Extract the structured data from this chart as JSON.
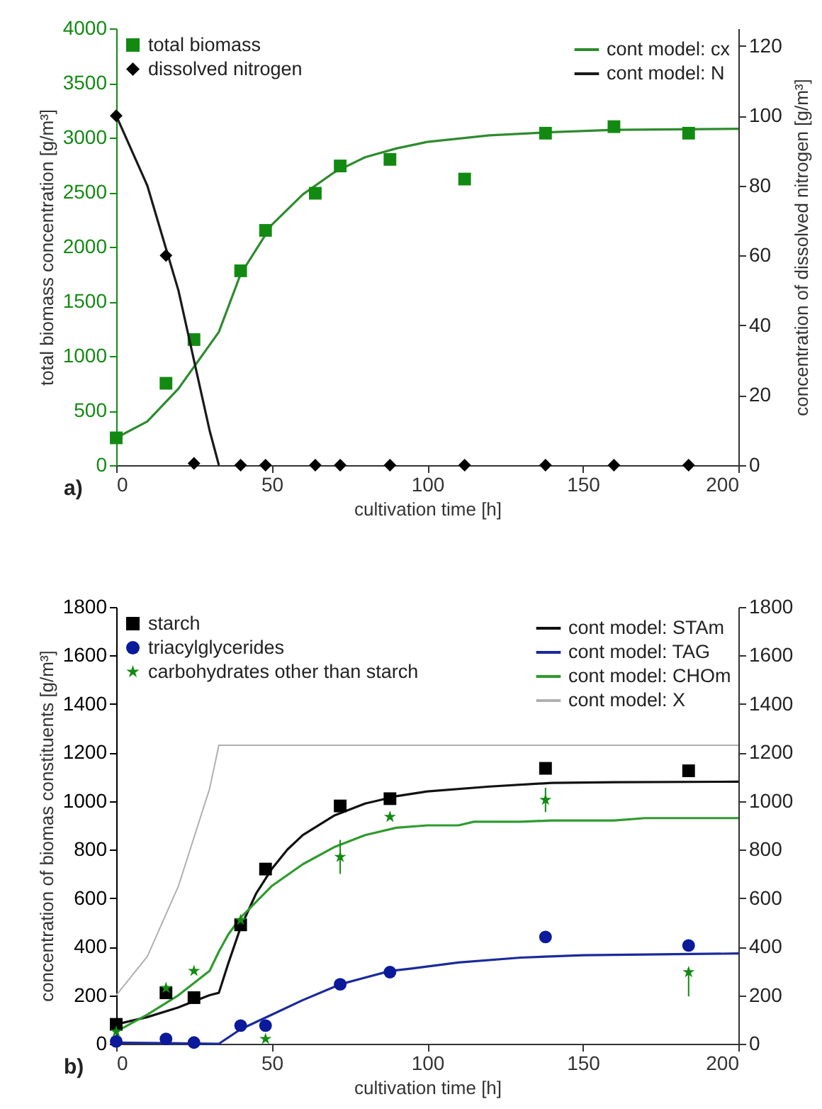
{
  "chart_data": [
    {
      "type": "scatter",
      "xlabel": "cultivation time [h]",
      "ylabel": "total biomass concentration [g/m³]",
      "y2label": "concentration of dissolved nitrogen [g/m³]",
      "xlim": [
        0,
        200
      ],
      "xticks": [
        0,
        50,
        100,
        150,
        200
      ],
      "ylim": [
        0,
        4000
      ],
      "yticks": [
        0,
        500,
        1000,
        1500,
        2000,
        2500,
        3000,
        3500,
        4000
      ],
      "y2lim": [
        0,
        125
      ],
      "y2ticks": [
        0,
        20,
        40,
        60,
        80,
        100,
        120
      ],
      "legend": "top",
      "annotations": [
        "a)"
      ],
      "series": [
        {
          "name": "total biomass",
          "marker": "square",
          "color": "#128a12",
          "x": [
            0,
            16,
            25,
            40,
            48,
            64,
            72,
            88,
            112,
            138,
            160,
            184
          ],
          "values": [
            250,
            750,
            1150,
            1780,
            2150,
            2490,
            2740,
            2800,
            2620,
            3040,
            3100,
            3040
          ]
        },
        {
          "name": "cont model: cx",
          "type": "line",
          "color": "#2e8b2e",
          "x": [
            0,
            10,
            20,
            30,
            33,
            40,
            50,
            60,
            70,
            80,
            90,
            100,
            120,
            140,
            160,
            200
          ],
          "values": [
            250,
            400,
            700,
            1100,
            1220,
            1750,
            2200,
            2480,
            2680,
            2820,
            2900,
            2960,
            3020,
            3050,
            3070,
            3080
          ]
        },
        {
          "name": "dissolved nitrogen",
          "marker": "diamond",
          "axis": "y2",
          "color": "#000000",
          "x": [
            0,
            16,
            25,
            40,
            48,
            64,
            72,
            88,
            112,
            138,
            160,
            184
          ],
          "values": [
            100,
            60,
            0.5,
            0,
            0,
            0,
            0,
            0,
            0,
            0,
            0,
            0
          ]
        },
        {
          "name": "cont model: N",
          "type": "line",
          "axis": "y2",
          "color": "#1a1a1a",
          "x": [
            0,
            10,
            16,
            20,
            25,
            30,
            33
          ],
          "values": [
            100,
            80,
            62,
            50,
            30,
            10,
            0
          ]
        }
      ]
    },
    {
      "type": "scatter",
      "xlabel": "cultivation time [h]",
      "ylabel": "concentration of biomas constituents [g/m³]",
      "xlim": [
        0,
        200
      ],
      "xticks": [
        0,
        50,
        100,
        150,
        200
      ],
      "ylim": [
        0,
        1800
      ],
      "yticks": [
        0,
        200,
        400,
        600,
        800,
        1000,
        1200,
        1400,
        1600,
        1800
      ],
      "y2lim": [
        0,
        1800
      ],
      "y2ticks": [
        0,
        200,
        400,
        600,
        800,
        1000,
        1200,
        1400,
        1600,
        1800
      ],
      "legend": "top",
      "annotations": [
        "b)"
      ],
      "series": [
        {
          "name": "starch",
          "marker": "square",
          "color": "#000000",
          "x": [
            0,
            16,
            25,
            40,
            48,
            72,
            88,
            138,
            184
          ],
          "values": [
            80,
            210,
            190,
            490,
            720,
            980,
            1010,
            1135,
            1125
          ]
        },
        {
          "name": "cont model: STAm",
          "type": "line",
          "color": "#111111",
          "x": [
            0,
            10,
            20,
            30,
            33,
            36,
            40,
            45,
            50,
            55,
            60,
            70,
            80,
            90,
            100,
            120,
            140,
            160,
            200
          ],
          "values": [
            80,
            110,
            150,
            200,
            210,
            330,
            480,
            620,
            720,
            800,
            860,
            940,
            990,
            1020,
            1040,
            1060,
            1075,
            1078,
            1080
          ]
        },
        {
          "name": "triacylglycerides",
          "marker": "circle",
          "color": "#0a1a9a",
          "x": [
            0,
            16,
            25,
            40,
            48,
            72,
            88,
            138,
            184
          ],
          "values": [
            10,
            20,
            5,
            75,
            75,
            245,
            295,
            440,
            405
          ]
        },
        {
          "name": "cont model: TAG",
          "type": "line",
          "color": "#1a2a9a",
          "x": [
            0,
            33,
            40,
            50,
            60,
            72,
            88,
            95,
            110,
            130,
            150,
            200
          ],
          "values": [
            5,
            0,
            60,
            120,
            180,
            245,
            300,
            310,
            335,
            355,
            365,
            372
          ]
        },
        {
          "name": "carbohydrates other than starch",
          "marker": "star",
          "color": "#128a12",
          "x": [
            0,
            16,
            25,
            40,
            48,
            72,
            88,
            138,
            184
          ],
          "values": [
            50,
            230,
            300,
            510,
            20,
            770,
            935,
            1005,
            295
          ],
          "errors": [
            null,
            null,
            null,
            null,
            null,
            70,
            null,
            50,
            [
              195,
              300
            ]
          ]
        },
        {
          "name": "cont model: CHOm",
          "type": "line",
          "color": "#2e9b2e",
          "x": [
            0,
            10,
            20,
            30,
            33,
            36,
            40,
            50,
            60,
            70,
            80,
            90,
            100,
            110,
            115,
            130,
            140,
            160,
            170,
            200
          ],
          "values": [
            50,
            120,
            200,
            300,
            380,
            450,
            520,
            650,
            740,
            810,
            860,
            890,
            900,
            900,
            915,
            915,
            920,
            920,
            930,
            930
          ]
        },
        {
          "name": "cont model: X",
          "type": "line",
          "axis": "y2",
          "color": "#b0b0b0",
          "x": [
            0,
            10,
            20,
            30,
            33,
            200
          ],
          "values": [
            200,
            360,
            650,
            1050,
            1230,
            1230
          ]
        }
      ]
    }
  ]
}
